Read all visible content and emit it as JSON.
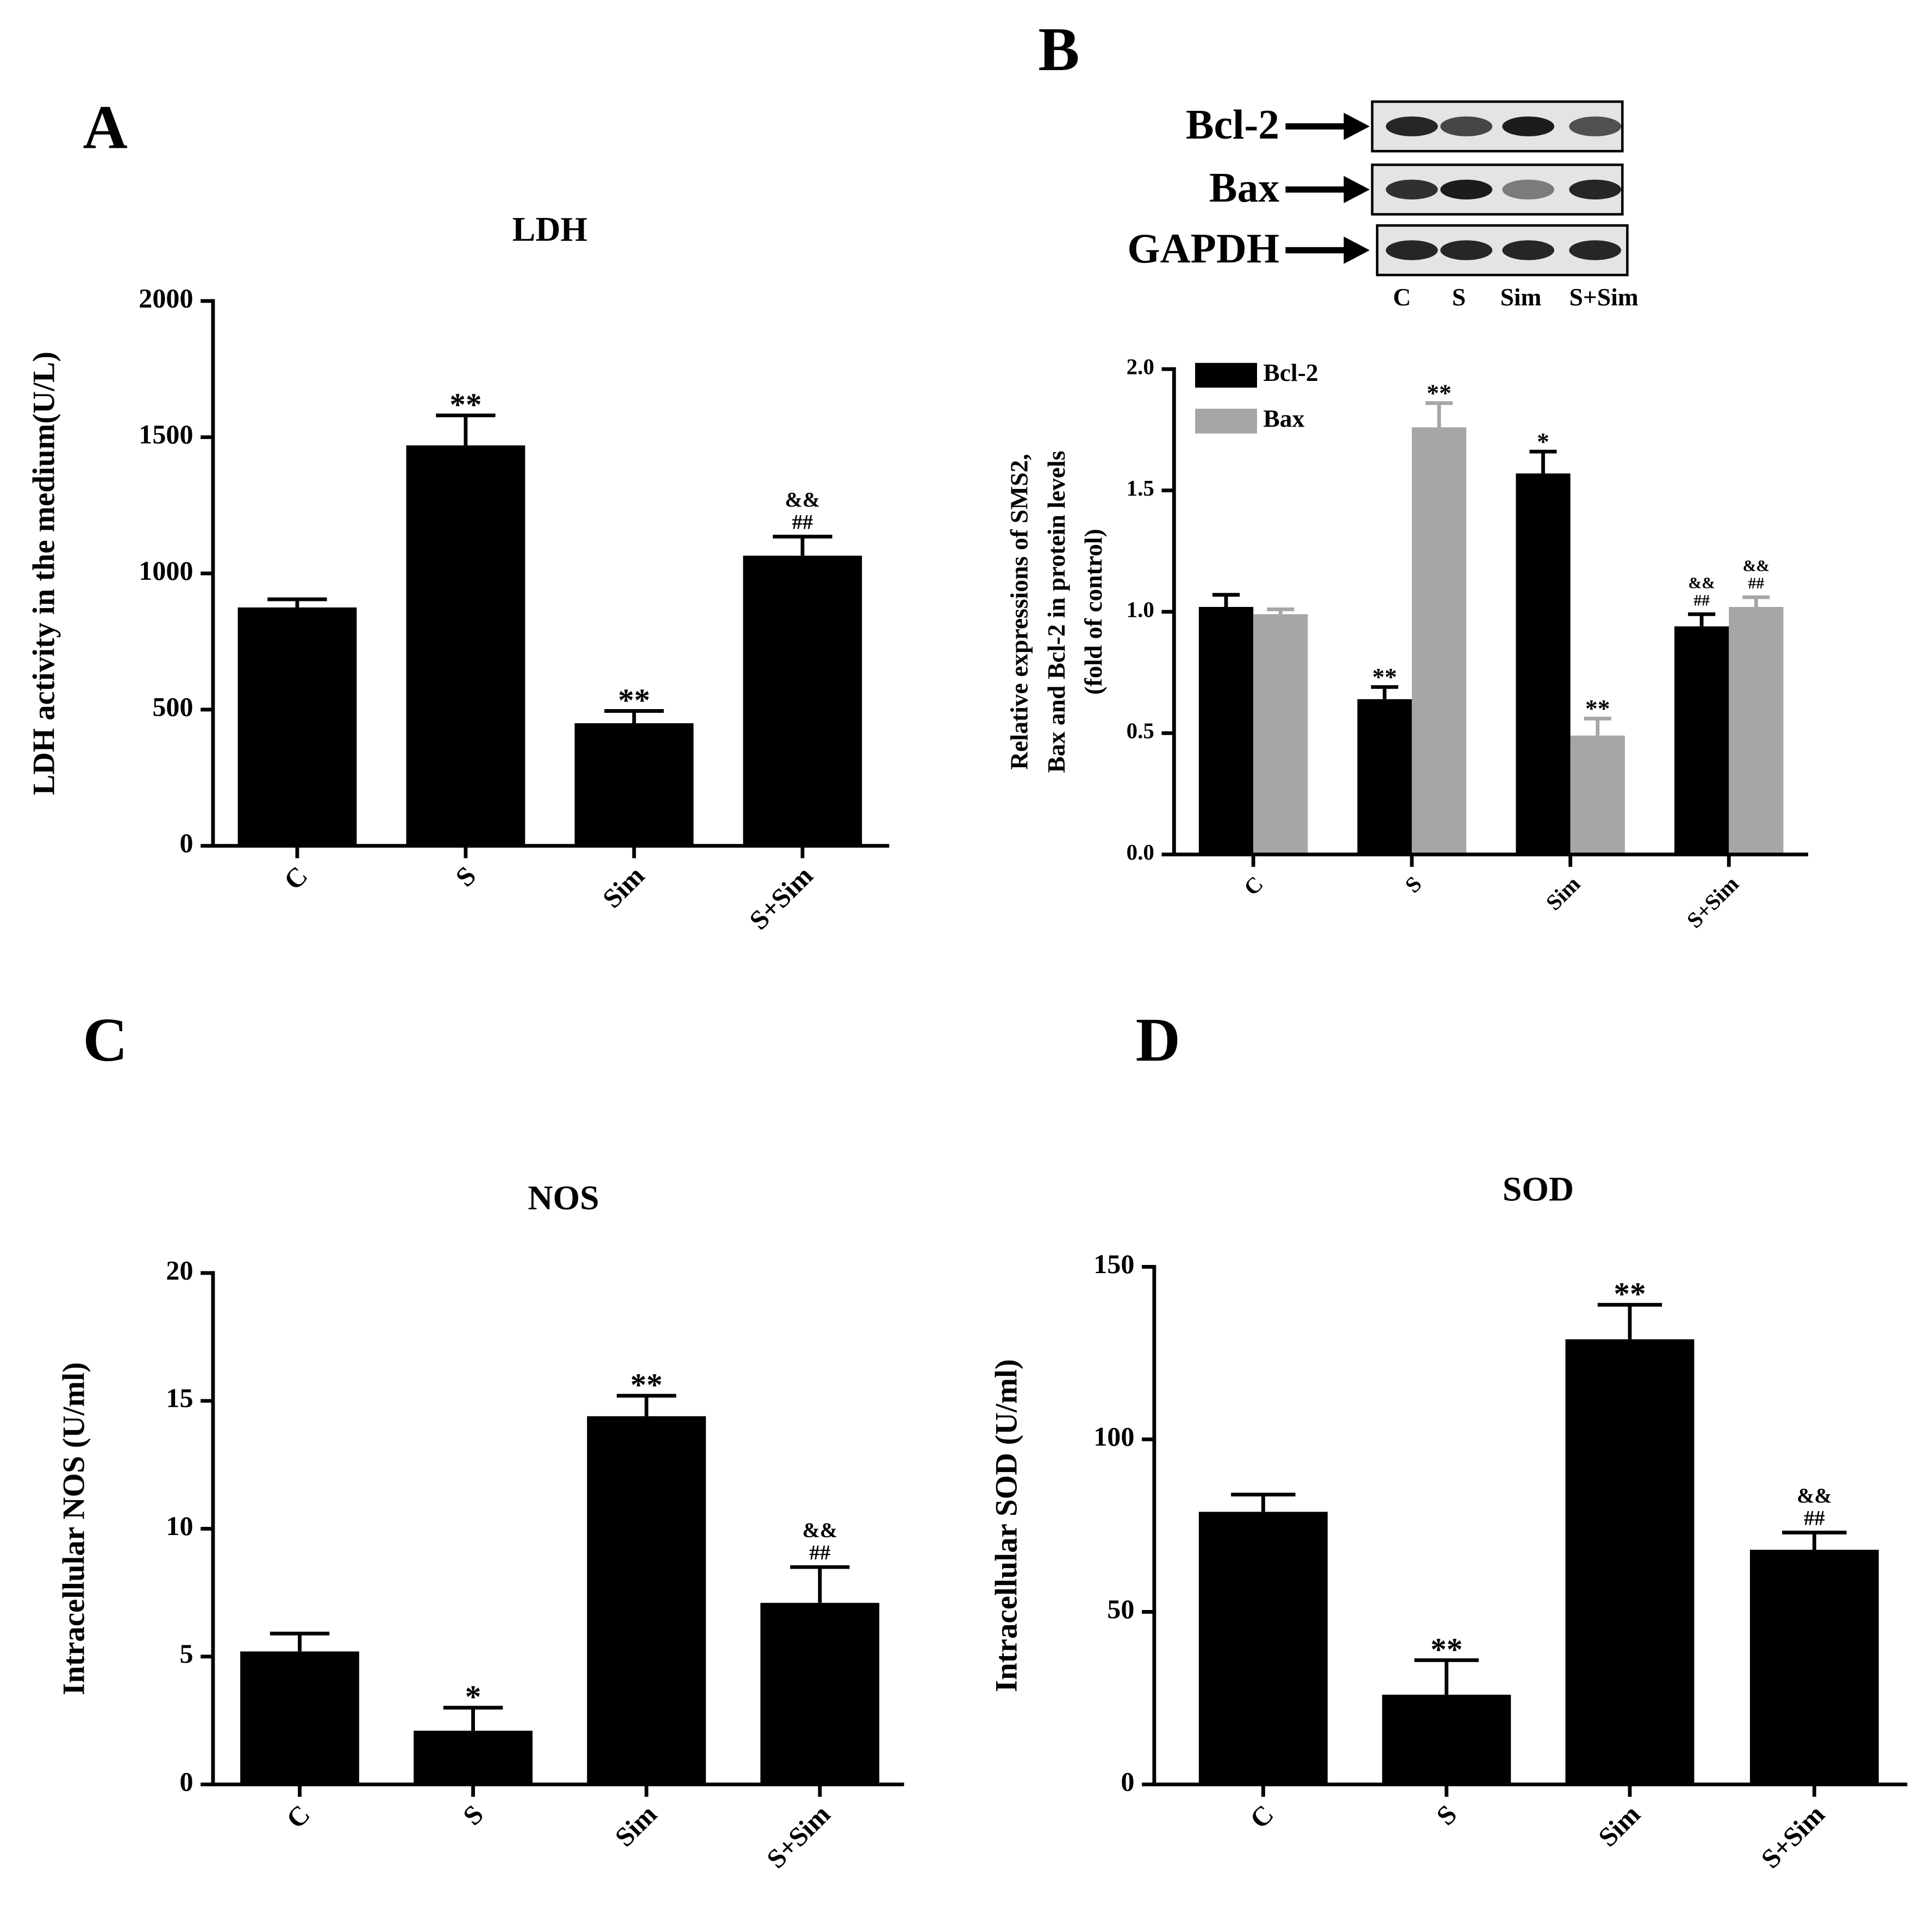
{
  "chart_data": [
    {
      "type": "bar",
      "label": "A",
      "title": "LDH",
      "y_label": "LDH activity in the medium(U/L)",
      "categories": [
        "C",
        "S",
        "Sim",
        "S+Sim"
      ],
      "values": [
        875,
        1470,
        450,
        1065
      ],
      "errors": [
        30,
        110,
        45,
        70
      ],
      "annotations": [
        [],
        [
          "**"
        ],
        [
          "**"
        ],
        [
          "&&",
          "##"
        ]
      ],
      "color": "#000000",
      "ylim": [
        0,
        2000
      ],
      "yticks": [
        0,
        500,
        1000,
        1500,
        2000
      ]
    },
    {
      "type": "grouped_bar",
      "label": "B",
      "blot": {
        "rows": [
          "Bcl-2",
          "Bax",
          "GAPDH"
        ],
        "lanes": [
          "C",
          "S",
          "Sim",
          "S+Sim"
        ]
      },
      "y_label": [
        "Relative expressions of SMS2,",
        "Bax and Bcl-2 in protein levels",
        "(fold of control)"
      ],
      "categories": [
        "C",
        "S",
        "Sim",
        "S+Sim"
      ],
      "series": [
        {
          "name": "Bcl-2",
          "color": "#000000",
          "values": [
            1.02,
            0.64,
            1.57,
            0.94
          ],
          "errors": [
            0.05,
            0.05,
            0.09,
            0.05
          ],
          "annotations": [
            [],
            [
              "**"
            ],
            [
              "*"
            ],
            [
              "&&",
              "##"
            ]
          ]
        },
        {
          "name": "Bax",
          "color": "#a6a6a6",
          "values": [
            0.99,
            1.76,
            0.49,
            1.02
          ],
          "errors": [
            0.02,
            0.1,
            0.07,
            0.04
          ],
          "annotations": [
            [],
            [
              "**"
            ],
            [
              "**"
            ],
            [
              "&&",
              "##"
            ]
          ]
        }
      ],
      "legend": "upper left",
      "ylim": [
        0,
        2
      ],
      "yticks": [
        {
          "value": 0,
          "label": "0.0"
        },
        0.5,
        {
          "value": 1,
          "label": "1.0"
        },
        1.5,
        {
          "value": 2,
          "label": "2.0"
        }
      ]
    },
    {
      "type": "bar",
      "label": "C",
      "title": "NOS",
      "y_label": "Intracellular NOS (U/ml)",
      "categories": [
        "C",
        "S",
        "Sim",
        "S+Sim"
      ],
      "values": [
        5.2,
        2.1,
        14.4,
        7.1
      ],
      "errors": [
        0.7,
        0.9,
        0.8,
        1.4
      ],
      "annotations": [
        [],
        [
          "*"
        ],
        [
          "**"
        ],
        [
          "&&",
          "##"
        ]
      ],
      "color": "#000000",
      "ylim": [
        0,
        20
      ],
      "yticks": [
        0,
        5,
        10,
        15,
        20
      ]
    },
    {
      "type": "bar",
      "label": "D",
      "title": "SOD",
      "y_label": "Intracellular SOD (U/ml)",
      "categories": [
        "C",
        "S",
        "Sim",
        "S+Sim"
      ],
      "values": [
        79,
        26,
        129,
        68
      ],
      "errors": [
        5,
        10,
        10,
        5
      ],
      "annotations": [
        [],
        [
          "**"
        ],
        [
          "**"
        ],
        [
          "&&",
          "##"
        ]
      ],
      "color": "#000000",
      "ylim": [
        0,
        150
      ],
      "yticks": [
        0,
        50,
        100,
        150
      ]
    }
  ]
}
